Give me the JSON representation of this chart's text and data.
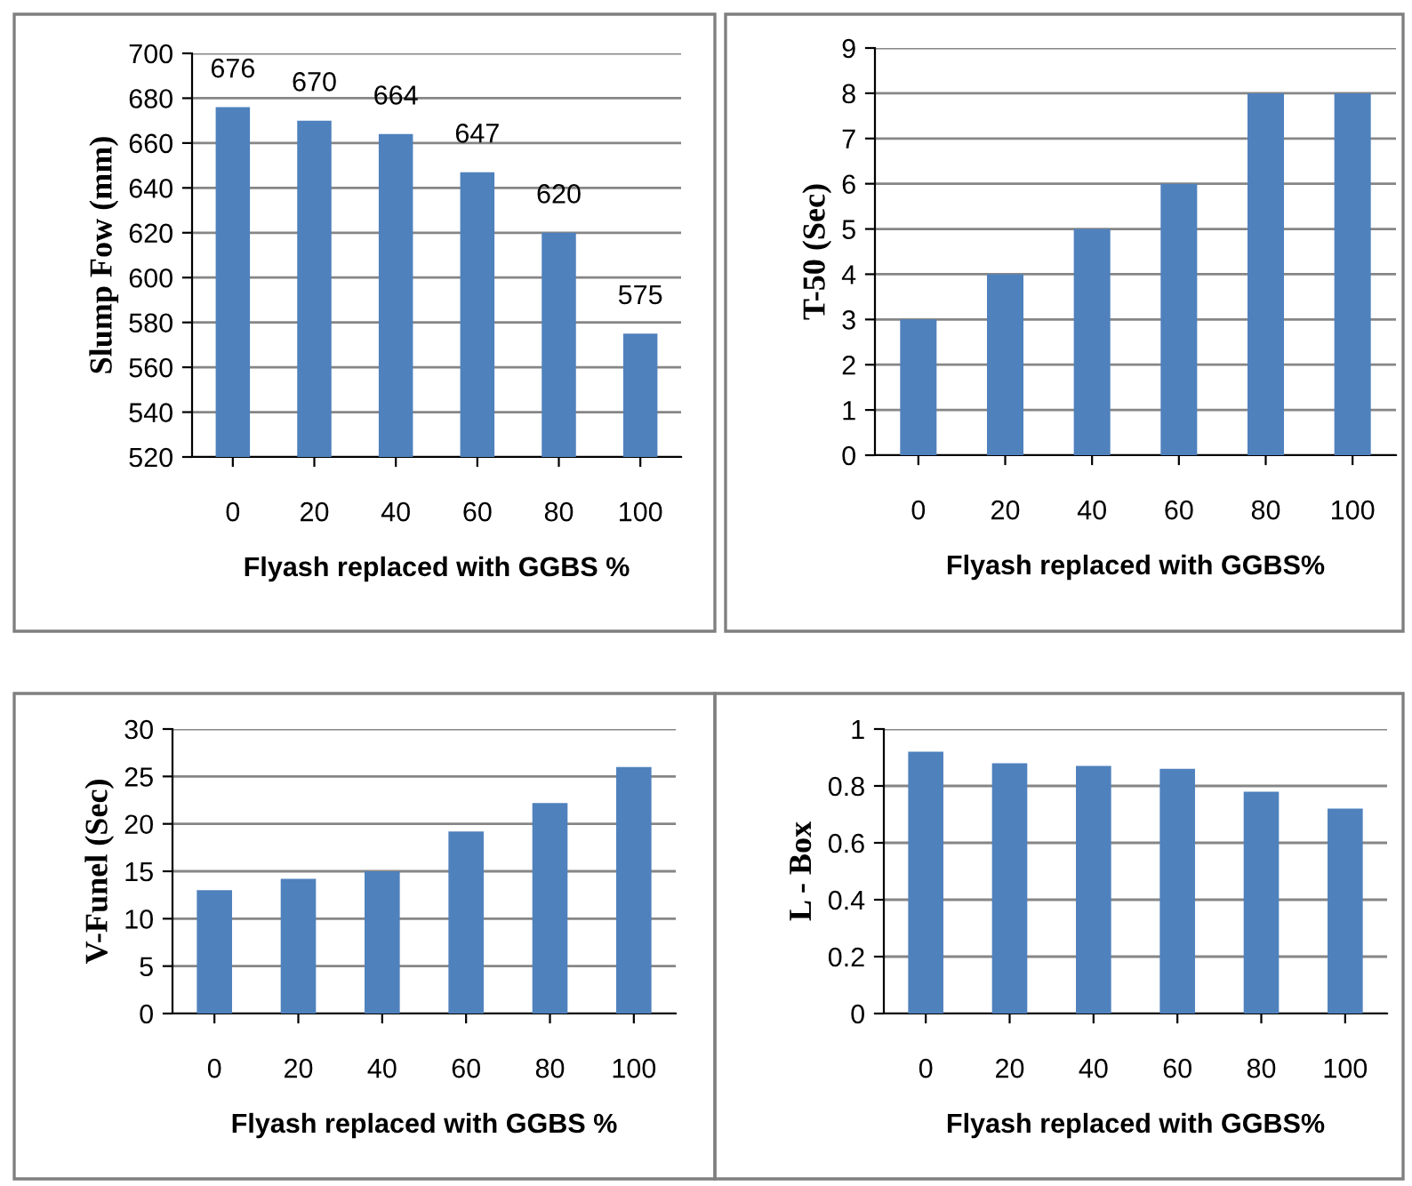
{
  "chart_data": [
    {
      "type": "bar",
      "categories": [
        "0",
        "20",
        "40",
        "60",
        "80",
        "100"
      ],
      "values": [
        676,
        670,
        664,
        647,
        620,
        575
      ],
      "value_labels": [
        "676",
        "670",
        "664",
        "647",
        "620",
        "575"
      ],
      "color": "#4f81bd",
      "ylabel": "Slump Fow (mm)",
      "xlabel": "Flyash replaced with GGBS %",
      "ylim": [
        520,
        700
      ],
      "yticks": [
        520,
        540,
        560,
        580,
        600,
        620,
        640,
        660,
        680,
        700
      ],
      "grid": "y"
    },
    {
      "type": "bar",
      "categories": [
        "0",
        "20",
        "40",
        "60",
        "80",
        "100"
      ],
      "values": [
        3,
        4,
        5,
        6,
        8,
        8
      ],
      "color": "#4f81bd",
      "ylabel": "T-50 (Sec)",
      "xlabel": "Flyash replaced with GGBS%",
      "ylim": [
        0,
        9
      ],
      "yticks": [
        0,
        1,
        2,
        3,
        4,
        5,
        6,
        7,
        8,
        9
      ],
      "grid": "y"
    },
    {
      "type": "bar",
      "categories": [
        "0",
        "20",
        "40",
        "60",
        "80",
        "100"
      ],
      "values": [
        13,
        14.2,
        15,
        19.2,
        22.2,
        26
      ],
      "color": "#4f81bd",
      "ylabel": "V-Funel (Sec)",
      "xlabel": "Flyash replaced with GGBS %",
      "ylim": [
        0,
        30
      ],
      "yticks": [
        0,
        5,
        10,
        15,
        20,
        25,
        30
      ],
      "grid": "y"
    },
    {
      "type": "bar",
      "categories": [
        "0",
        "20",
        "40",
        "60",
        "80",
        "100"
      ],
      "values": [
        0.92,
        0.88,
        0.87,
        0.86,
        0.78,
        0.72
      ],
      "color": "#4f81bd",
      "ylabel": "L - Box",
      "xlabel": "Flyash replaced with GGBS%",
      "ylim": [
        0,
        1
      ],
      "yticks": [
        0,
        0.2,
        0.4,
        0.6,
        0.8,
        1
      ],
      "grid": "y"
    }
  ]
}
